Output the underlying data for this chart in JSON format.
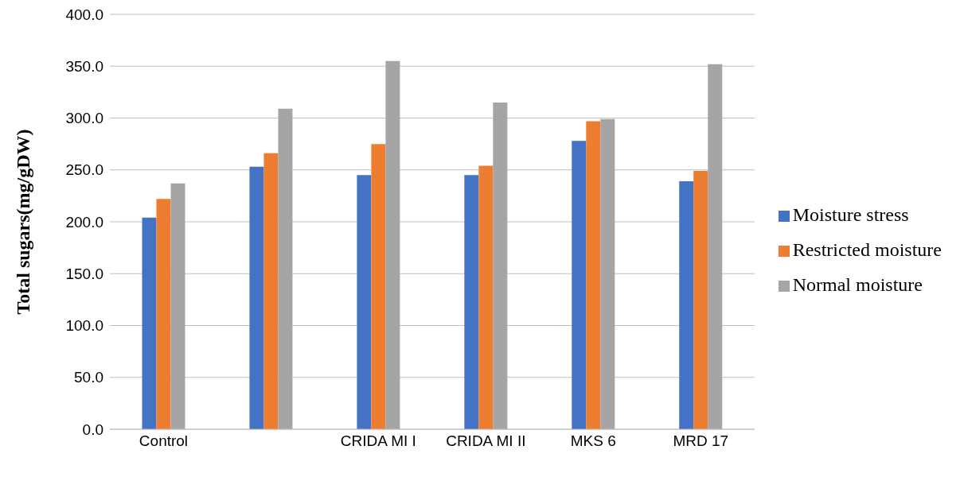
{
  "chart_data": {
    "type": "bar",
    "ylabel": "Total sugars(mg/gDW)",
    "categories": [
      "Control",
      null,
      "CRIDA MI I",
      "CRIDA MI II",
      "MKS 6",
      "MRD 17"
    ],
    "series": [
      {
        "name": "Moisture stress",
        "color": "#4472c4",
        "values": [
          204,
          253,
          245,
          245,
          278,
          239
        ]
      },
      {
        "name": "Restricted moisture",
        "color": "#ed7d31",
        "values": [
          222,
          266,
          275,
          254,
          297,
          249
        ]
      },
      {
        "name": "Normal moisture",
        "color": "#a5a5a5",
        "values": [
          237,
          309,
          355,
          315,
          299,
          352
        ]
      }
    ],
    "ylim": [
      0,
      400
    ],
    "yticks": [
      {
        "value": 0,
        "label": "0.0"
      },
      {
        "value": 50,
        "label": "50.0"
      },
      {
        "value": 100,
        "label": "100.0"
      },
      {
        "value": 150,
        "label": "150.0"
      },
      {
        "value": 200,
        "label": "200.0"
      },
      {
        "value": 250,
        "label": "250.0"
      },
      {
        "value": 300,
        "label": "300.0"
      },
      {
        "value": 350,
        "label": "350.0"
      },
      {
        "value": 400,
        "label": "400.0"
      }
    ],
    "grid": "y",
    "legend": "right"
  }
}
